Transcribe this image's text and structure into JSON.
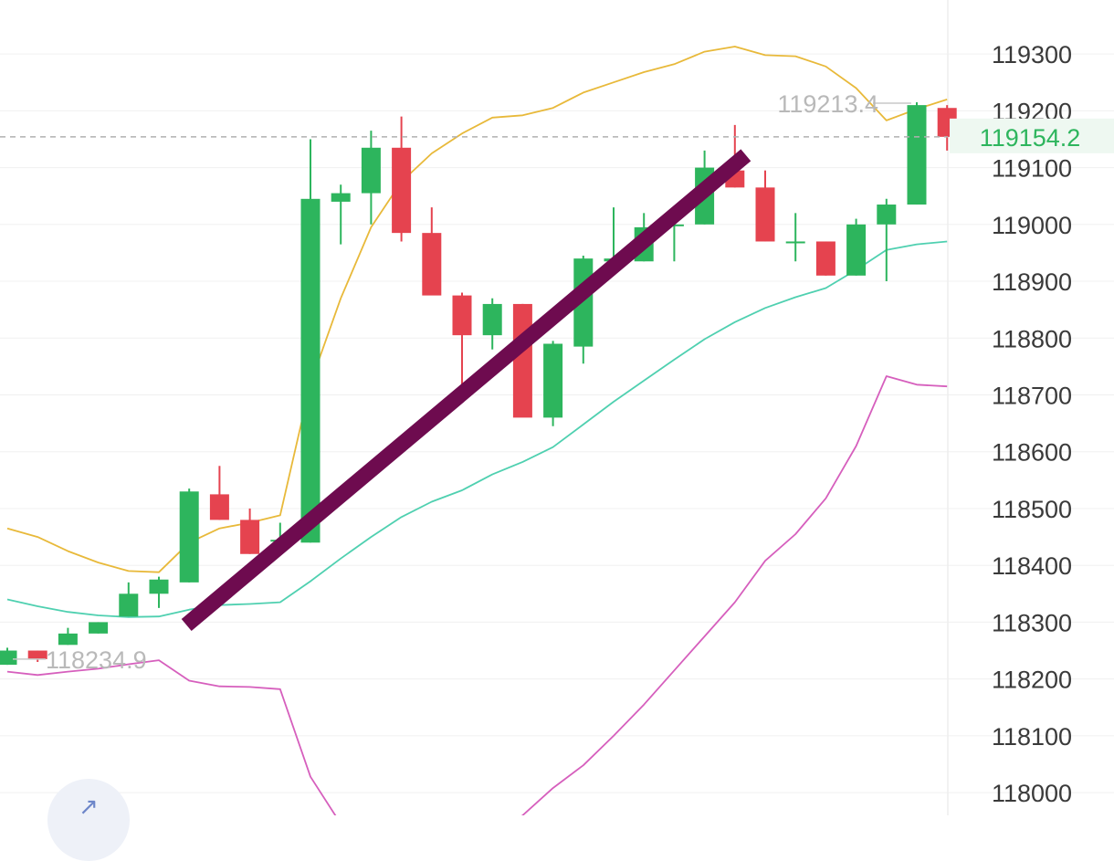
{
  "chart_data": {
    "type": "candlestick",
    "title": "",
    "xlabel": "",
    "ylabel": "",
    "y_axis_position": "right",
    "ylim": [
      117960,
      119395
    ],
    "y_ticks": [
      118000,
      118100,
      118200,
      118300,
      118400,
      118500,
      118600,
      118700,
      118800,
      118900,
      119000,
      119100,
      119200,
      119300
    ],
    "y_tick_labels": [
      "118000",
      "118100",
      "118200",
      "118300",
      "118400",
      "118500",
      "118600",
      "118700",
      "118800",
      "118900",
      "119000",
      "119100",
      "119200",
      "119300"
    ],
    "grid": true,
    "colors": {
      "up": "#2db55d",
      "down": "#e5434f",
      "upper_band": "#e8b93a",
      "middle_band": "#4fd0b0",
      "lower_band": "#d65fbd",
      "trendline": "#6e0b4f",
      "last_price": "#2db55d",
      "last_price_bg": "#eef8f1"
    },
    "candles": [
      {
        "open": 118225,
        "high": 118255,
        "low": 118225,
        "close": 118250
      },
      {
        "open": 118250,
        "high": 118250,
        "low": 118230,
        "close": 118235
      },
      {
        "open": 118260,
        "high": 118290,
        "low": 118260,
        "close": 118280
      },
      {
        "open": 118280,
        "high": 118300,
        "low": 118280,
        "close": 118300
      },
      {
        "open": 118310,
        "high": 118370,
        "low": 118310,
        "close": 118350
      },
      {
        "open": 118350,
        "high": 118380,
        "low": 118325,
        "close": 118375
      },
      {
        "open": 118370,
        "high": 118535,
        "low": 118370,
        "close": 118530
      },
      {
        "open": 118525,
        "high": 118575,
        "low": 118480,
        "close": 118480
      },
      {
        "open": 118480,
        "high": 118500,
        "low": 118420,
        "close": 118420
      },
      {
        "open": 118445,
        "high": 118475,
        "low": 118445,
        "close": 118445
      },
      {
        "open": 118440,
        "high": 119150,
        "low": 118440,
        "close": 119045
      },
      {
        "open": 119040,
        "high": 119070,
        "low": 118965,
        "close": 119055
      },
      {
        "open": 119055,
        "high": 119165,
        "low": 119000,
        "close": 119135
      },
      {
        "open": 119135,
        "high": 119190,
        "low": 118970,
        "close": 118985
      },
      {
        "open": 118985,
        "high": 119030,
        "low": 118880,
        "close": 118875
      },
      {
        "open": 118875,
        "high": 118880,
        "low": 118715,
        "close": 118805
      },
      {
        "open": 118805,
        "high": 118870,
        "low": 118780,
        "close": 118860
      },
      {
        "open": 118860,
        "high": 118860,
        "low": 118665,
        "close": 118660
      },
      {
        "open": 118660,
        "high": 118795,
        "low": 118645,
        "close": 118790
      },
      {
        "open": 118785,
        "high": 118945,
        "low": 118755,
        "close": 118940
      },
      {
        "open": 118935,
        "high": 119030,
        "low": 118935,
        "close": 118940
      },
      {
        "open": 118935,
        "high": 119020,
        "low": 118935,
        "close": 118995
      },
      {
        "open": 119000,
        "high": 119000,
        "low": 118935,
        "close": 119000
      },
      {
        "open": 119000,
        "high": 119130,
        "low": 119000,
        "close": 119100
      },
      {
        "open": 119095,
        "high": 119175,
        "low": 119065,
        "close": 119065
      },
      {
        "open": 119065,
        "high": 119095,
        "low": 118970,
        "close": 118970
      },
      {
        "open": 118970,
        "high": 119020,
        "low": 118935,
        "close": 118970
      },
      {
        "open": 118970,
        "high": 118970,
        "low": 118910,
        "close": 118910
      },
      {
        "open": 118910,
        "high": 119010,
        "low": 118910,
        "close": 119000
      },
      {
        "open": 119000,
        "high": 119045,
        "low": 118900,
        "close": 119035
      },
      {
        "open": 119035,
        "high": 119215,
        "low": 119035,
        "close": 119210
      },
      {
        "open": 119205,
        "high": 119210,
        "low": 119130,
        "close": 119154.2
      }
    ],
    "series": [
      {
        "role": "upper_band",
        "values": [
          118465,
          118450,
          118425,
          118405,
          118390,
          118388,
          118440,
          118465,
          118475,
          118488,
          118720,
          118870,
          118995,
          119075,
          119125,
          119160,
          119188,
          119192,
          119205,
          119232,
          119250,
          119268,
          119282,
          119304,
          119313,
          119298,
          119296,
          119278,
          119240,
          119183,
          119203,
          119220
        ]
      },
      {
        "role": "middle_band",
        "values": [
          118340,
          118328,
          118318,
          118312,
          118309,
          118310,
          118322,
          118330,
          118332,
          118335,
          118372,
          118412,
          118450,
          118485,
          118512,
          118532,
          118560,
          118582,
          118608,
          118648,
          118688,
          118725,
          118762,
          118798,
          118828,
          118853,
          118872,
          118888,
          118920,
          118955,
          118965,
          118970
        ]
      },
      {
        "role": "lower_band",
        "values": [
          118213,
          118207,
          118213,
          118218,
          118226,
          118233,
          118197,
          118187,
          118186,
          118182,
          118028,
          117945,
          117905,
          117890,
          117900,
          117905,
          117920,
          117960,
          118008,
          118048,
          118100,
          118155,
          118215,
          118275,
          118335,
          118408,
          118455,
          118518,
          118610,
          118733,
          118718,
          118715
        ]
      }
    ],
    "annotations": {
      "high_label": "119213.4",
      "low_label": "118234.9",
      "last_price": 119154.2,
      "last_price_label": "119154.2"
    },
    "trendline": {
      "from": {
        "candle": 6,
        "value": 118295
      },
      "to": {
        "candle": 24,
        "value": 119122
      }
    },
    "floating_button_icon": "arrow-up-right-icon"
  }
}
